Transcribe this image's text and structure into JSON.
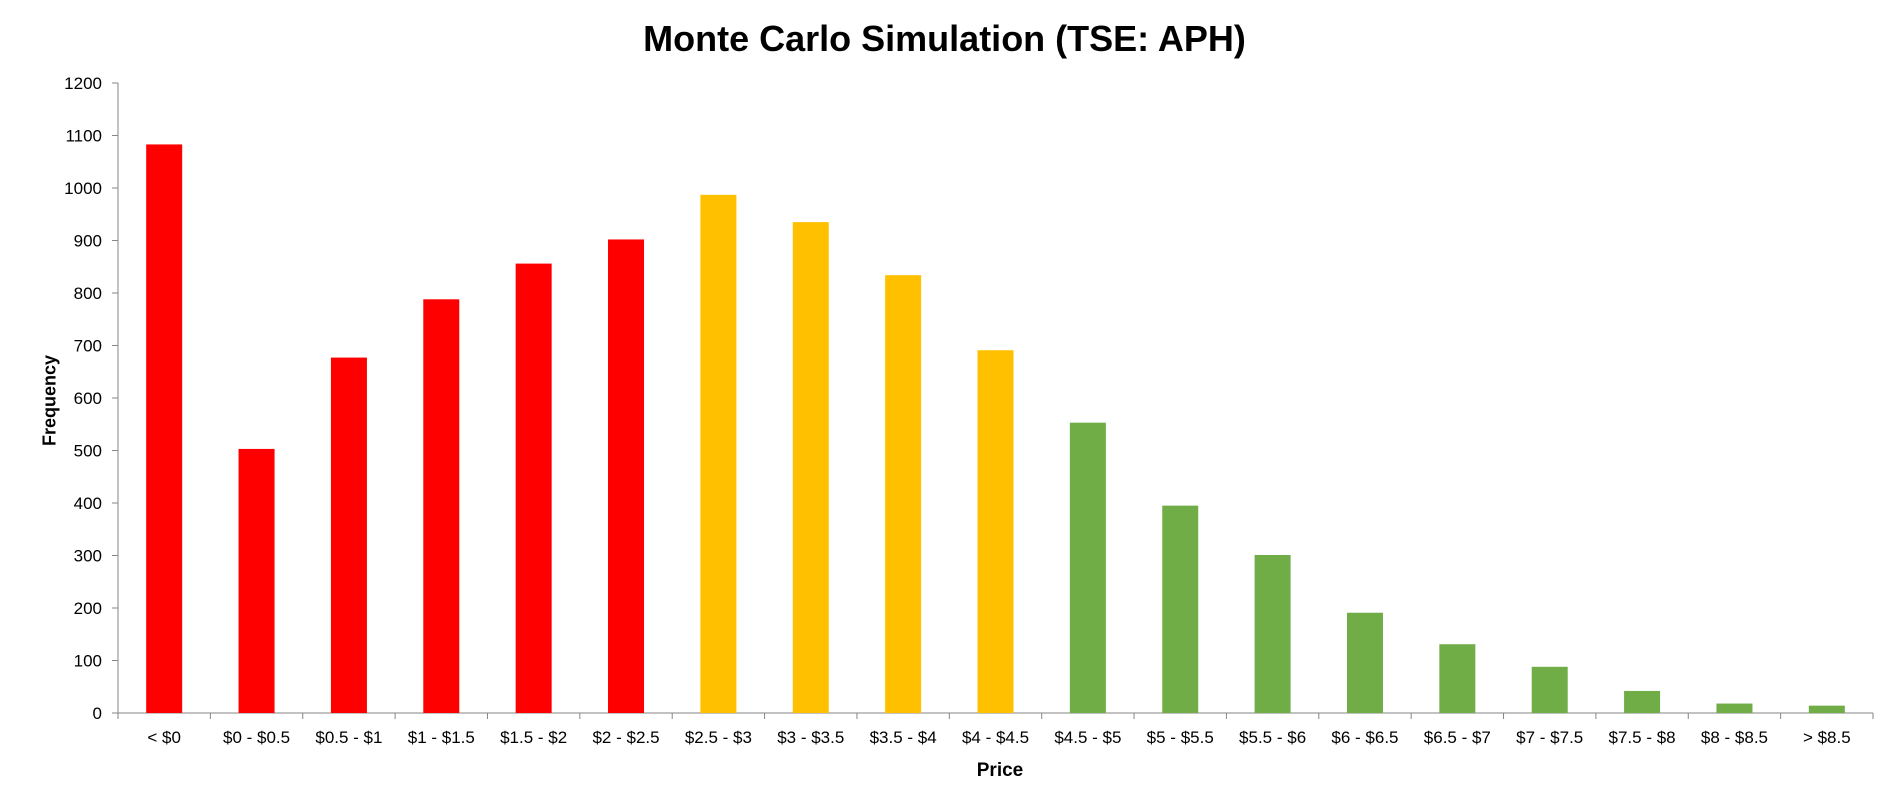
{
  "chart_data": {
    "type": "bar",
    "title": "Monte Carlo Simulation (TSE: APH)",
    "xlabel": "Price",
    "ylabel": "Frequency",
    "ylim": [
      0,
      1200
    ],
    "yticks": [
      0,
      100,
      200,
      300,
      400,
      500,
      600,
      700,
      800,
      900,
      1000,
      1100,
      1200
    ],
    "grid": false,
    "legend": "none",
    "categories": [
      "< $0",
      "$0 - $0.5",
      "$0.5 - $1",
      "$1 - $1.5",
      "$1.5 - $2",
      "$2 - $2.5",
      "$2.5 - $3",
      "$3 - $3.5",
      "$3.5 - $4",
      "$4 - $4.5",
      "$4.5 - $5",
      "$5 - $5.5",
      "$5.5 - $6",
      "$6 - $6.5",
      "$6.5 - $7",
      "$7 - $7.5",
      "$7.5 - $8",
      "$8 - $8.5",
      "> $8.5"
    ],
    "values": [
      1083,
      503,
      677,
      788,
      856,
      902,
      987,
      935,
      834,
      691,
      553,
      395,
      301,
      191,
      131,
      88,
      42,
      18,
      14
    ],
    "bar_colors": [
      "#ff0000",
      "#ff0000",
      "#ff0000",
      "#ff0000",
      "#ff0000",
      "#ff0000",
      "#ffc000",
      "#ffc000",
      "#ffc000",
      "#ffc000",
      "#70ad47",
      "#70ad47",
      "#70ad47",
      "#70ad47",
      "#70ad47",
      "#70ad47",
      "#70ad47",
      "#70ad47",
      "#70ad47"
    ]
  }
}
